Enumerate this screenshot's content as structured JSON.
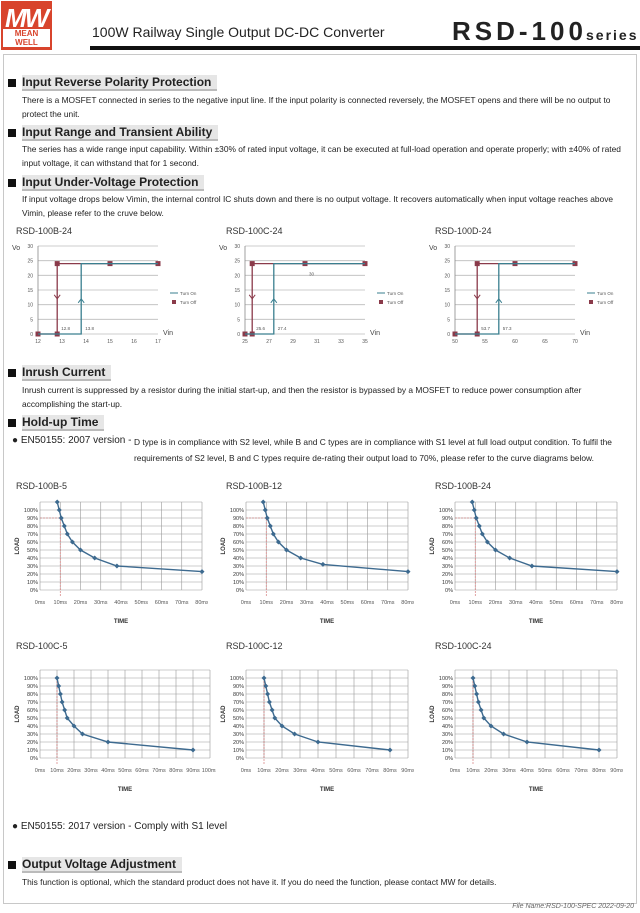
{
  "header": {
    "logo_top": "MW",
    "logo_bottom": "MEAN WELL",
    "subtitle": "100W Railway Single Output DC-DC Converter",
    "model": "RSD-100",
    "series": "series"
  },
  "sections": [
    {
      "title": "Input Reverse Polarity Protection",
      "text": "There is a MOSFET connected in series to the negative input line. If the input polarity is connected reversely, the MOSFET opens and there will be no output to protect the unit."
    },
    {
      "title": "Input Range and Transient Ability",
      "text": "The series has a wide range input capability. Within ±30% of rated input voltage, it can be executed at full-load operation and operate properly; with ±40% of rated input voltage, it can withstand that for 1 second."
    },
    {
      "title": "Input Under-Voltage Protection",
      "text": "If input voltage drops below Vimin, the internal control IC shuts down and there is no output voltage. It recovers automatically when input voltage reaches above Vimin, please refer to the cruve below."
    },
    {
      "title": "Inrush Current",
      "text": "Inrush current is suppressed by a resistor during the initial start-up, and then the resistor is bypassed by a MOSFET to reduce power consumption after accomplishing the start-up."
    },
    {
      "title": "Hold-up Time",
      "text": ""
    },
    {
      "title": "Output Voltage Adjustment",
      "text": "This function is optional, which the standard product does not have it. If you do need the function, please contact MW for details."
    }
  ],
  "holdup": {
    "bullet1_label": "EN50155: 2007 version -",
    "bullet1_text": "D type is in compliance with S2 level, while B and C types are in compliance with S1 level at full load output condition. To fulfil the requirements of S2 level, B and C types require de-rating their output load to 70%, please refer to the curve diagrams below.",
    "bullet2": "EN50155: 2017 version - Comply with S1 level"
  },
  "footer": "File Name:RSD-100-SPEC   2022-09-20",
  "colors": {
    "turn_on": "#3a7f8f",
    "turn_off": "#8a3a4a",
    "curve": "#3d6a8f"
  },
  "chart_data": [
    {
      "type": "line",
      "title": "RSD-100B-24",
      "ylabel": "Vo",
      "xlabel": "Vin",
      "xlim": [
        12,
        17
      ],
      "xticks": [
        12,
        13,
        14,
        15,
        16,
        17
      ],
      "ylim": [
        0,
        30
      ],
      "yticks": [
        0,
        5,
        10,
        15,
        20,
        25,
        30
      ],
      "legend": [
        "Turn On",
        "Turn Off"
      ],
      "legend_position": "right",
      "series": [
        {
          "name": "Turn On",
          "x": [
            12,
            13.8,
            13.8,
            17
          ],
          "y": [
            0,
            0,
            24,
            24
          ]
        },
        {
          "name": "Turn Off",
          "x": [
            17,
            15,
            12.8,
            12.8,
            12
          ],
          "y": [
            24,
            24,
            24,
            0,
            0
          ]
        }
      ],
      "annotations": [
        {
          "text": "12.8",
          "x": 12.8
        },
        {
          "text": "13.8",
          "x": 13.8
        }
      ]
    },
    {
      "type": "line",
      "title": "RSD-100C-24",
      "ylabel": "Vo",
      "xlabel": "Vin",
      "xlim": [
        25,
        35
      ],
      "xticks": [
        25,
        27,
        29,
        31,
        33,
        35
      ],
      "ylim": [
        0,
        30
      ],
      "yticks": [
        0,
        5,
        10,
        15,
        20,
        25,
        30
      ],
      "legend": [
        "Turn On",
        "Turn Off"
      ],
      "legend_position": "right",
      "series": [
        {
          "name": "Turn On",
          "x": [
            25,
            27.4,
            27.4,
            35
          ],
          "y": [
            0,
            0,
            24,
            24
          ]
        },
        {
          "name": "Turn Off",
          "x": [
            35,
            30,
            25.6,
            25.6,
            25
          ],
          "y": [
            24,
            24,
            24,
            0,
            0
          ]
        }
      ],
      "annotations": [
        {
          "text": "25.6",
          "x": 25.6
        },
        {
          "text": "27.4",
          "x": 27.4
        },
        {
          "text": "30",
          "x": 30,
          "top": true
        }
      ]
    },
    {
      "type": "line",
      "title": "RSD-100D-24",
      "ylabel": "Vo",
      "xlabel": "Vin",
      "xlim": [
        50,
        70
      ],
      "xticks": [
        50,
        55,
        60,
        65,
        70
      ],
      "ylim": [
        0,
        30
      ],
      "yticks": [
        0,
        5,
        10,
        15,
        20,
        25,
        30
      ],
      "legend": [
        "Turn On",
        "Turn Off"
      ],
      "legend_position": "right",
      "series": [
        {
          "name": "Turn On",
          "x": [
            50,
            57.3,
            57.3,
            70
          ],
          "y": [
            0,
            0,
            24,
            24
          ]
        },
        {
          "name": "Turn Off",
          "x": [
            70,
            60,
            53.7,
            53.7,
            50
          ],
          "y": [
            24,
            24,
            24,
            0,
            0
          ]
        }
      ],
      "annotations": [
        {
          "text": "53.7",
          "x": 53.7
        },
        {
          "text": "57.3",
          "x": 57.3
        }
      ]
    },
    {
      "type": "line",
      "title": "RSD-100B-5",
      "xlabel": "TIME",
      "ylabel": "LOAD",
      "xlim": [
        0,
        80
      ],
      "xticks": [
        "0ms",
        "10ms",
        "20ms",
        "30ms",
        "40ms",
        "50ms",
        "60ms",
        "70ms",
        "80ms"
      ],
      "ylim": [
        0,
        100
      ],
      "yticks": [
        "0%",
        "10%",
        "20%",
        "30%",
        "40%",
        "50%",
        "60%",
        "70%",
        "80%",
        "90%",
        "100%"
      ],
      "ref90": true,
      "series": [
        {
          "name": "Hold-up",
          "x": [
            8.5,
            9.5,
            10.5,
            12,
            13.5,
            16,
            20,
            27,
            38,
            80
          ],
          "y": [
            110,
            100,
            90,
            80,
            70,
            60,
            50,
            40,
            30,
            23
          ]
        }
      ]
    },
    {
      "type": "line",
      "title": "RSD-100B-12",
      "xlabel": "TIME",
      "ylabel": "LOAD",
      "xlim": [
        0,
        80
      ],
      "xticks": [
        "0ms",
        "10ms",
        "20ms",
        "30ms",
        "40ms",
        "50ms",
        "60ms",
        "70ms",
        "80ms"
      ],
      "ylim": [
        0,
        100
      ],
      "yticks": [
        "0%",
        "10%",
        "20%",
        "30%",
        "40%",
        "50%",
        "60%",
        "70%",
        "80%",
        "90%",
        "100%"
      ],
      "ref90": true,
      "series": [
        {
          "name": "Hold-up",
          "x": [
            8.5,
            9.5,
            10.5,
            12,
            13.5,
            16,
            20,
            27,
            38,
            80
          ],
          "y": [
            110,
            100,
            90,
            80,
            70,
            60,
            50,
            40,
            32,
            23
          ]
        }
      ]
    },
    {
      "type": "line",
      "title": "RSD-100B-24",
      "xlabel": "TIME",
      "ylabel": "LOAD",
      "xlim": [
        0,
        80
      ],
      "xticks": [
        "0ms",
        "10ms",
        "20ms",
        "30ms",
        "40ms",
        "50ms",
        "60ms",
        "70ms",
        "80ms"
      ],
      "ylim": [
        0,
        100
      ],
      "yticks": [
        "0%",
        "10%",
        "20%",
        "30%",
        "40%",
        "50%",
        "60%",
        "70%",
        "80%",
        "90%",
        "100%"
      ],
      "ref90": true,
      "series": [
        {
          "name": "Hold-up",
          "x": [
            8.5,
            9.5,
            10.5,
            12,
            13.5,
            16,
            20,
            27,
            38,
            80
          ],
          "y": [
            110,
            100,
            90,
            80,
            70,
            60,
            50,
            40,
            30,
            23
          ]
        }
      ]
    },
    {
      "type": "line",
      "title": "RSD-100C-5",
      "xlabel": "TIME",
      "ylabel": "LOAD",
      "xlim": [
        0,
        100
      ],
      "xticks": [
        "0ms",
        "10ms",
        "20ms",
        "30ms",
        "40ms",
        "50ms",
        "60ms",
        "70ms",
        "80ms",
        "90ms",
        "100ms"
      ],
      "ylim": [
        0,
        100
      ],
      "yticks": [
        "0%",
        "10%",
        "20%",
        "30%",
        "40%",
        "50%",
        "60%",
        "70%",
        "80%",
        "90%",
        "100%"
      ],
      "series": [
        {
          "name": "Hold-up",
          "x": [
            10,
            11,
            12,
            13,
            14.5,
            16,
            20,
            25,
            40,
            90
          ],
          "y": [
            100,
            90,
            80,
            70,
            60,
            50,
            40,
            30,
            20,
            10
          ]
        }
      ]
    },
    {
      "type": "line",
      "title": "RSD-100C-12",
      "xlabel": "TIME",
      "ylabel": "LOAD",
      "xlim": [
        0,
        90
      ],
      "xticks": [
        "0ms",
        "10ms",
        "20ms",
        "30ms",
        "40ms",
        "50ms",
        "60ms",
        "70ms",
        "80ms",
        "90ms"
      ],
      "ylim": [
        0,
        100
      ],
      "yticks": [
        "0%",
        "10%",
        "20%",
        "30%",
        "40%",
        "50%",
        "60%",
        "70%",
        "80%",
        "90%",
        "100%"
      ],
      "series": [
        {
          "name": "Hold-up",
          "x": [
            10,
            11,
            12,
            13,
            14.5,
            16,
            20,
            27,
            40,
            80
          ],
          "y": [
            100,
            90,
            80,
            70,
            60,
            50,
            40,
            30,
            20,
            10
          ]
        }
      ]
    },
    {
      "type": "line",
      "title": "RSD-100C-24",
      "xlabel": "TIME",
      "ylabel": "LOAD",
      "xlim": [
        0,
        90
      ],
      "xticks": [
        "0ms",
        "10ms",
        "20ms",
        "30ms",
        "40ms",
        "50ms",
        "60ms",
        "70ms",
        "80ms",
        "90ms"
      ],
      "ylim": [
        0,
        100
      ],
      "yticks": [
        "0%",
        "10%",
        "20%",
        "30%",
        "40%",
        "50%",
        "60%",
        "70%",
        "80%",
        "90%",
        "100%"
      ],
      "series": [
        {
          "name": "Hold-up",
          "x": [
            10,
            11,
            12,
            13,
            14.5,
            16,
            20,
            27,
            40,
            80
          ],
          "y": [
            100,
            90,
            80,
            70,
            60,
            50,
            40,
            30,
            20,
            10
          ]
        }
      ]
    }
  ]
}
